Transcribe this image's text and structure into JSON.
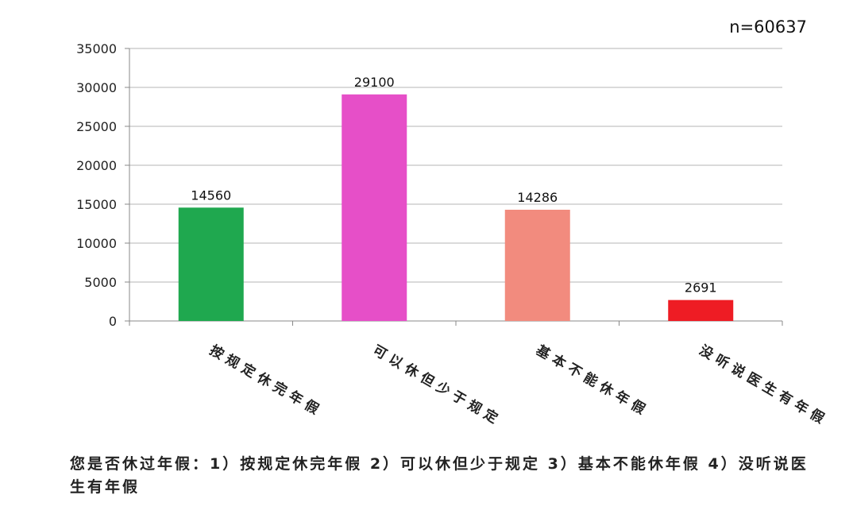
{
  "sample_note": "n=60637",
  "caption": "您是否休过年假：1）按规定休完年假 2）可以休但少于规定 3）基本不能休年假 4）没听说医生有年假",
  "chart_data": {
    "type": "bar",
    "categories": [
      "按规定休完年假",
      "可以休但少于规定",
      "基本不能休年假",
      "没听说医生有年假"
    ],
    "values": [
      14560,
      29100,
      14286,
      2691
    ],
    "data_labels": [
      "14560",
      "29100",
      "14286",
      "2691"
    ],
    "colors": [
      "#1fa84f",
      "#e64fc8",
      "#f28b7e",
      "#ee1c24"
    ],
    "ylim": [
      0,
      35000
    ],
    "yticks": [
      0,
      5000,
      10000,
      15000,
      20000,
      25000,
      30000,
      35000
    ],
    "grid": true,
    "title": "",
    "xlabel": "",
    "ylabel": ""
  }
}
